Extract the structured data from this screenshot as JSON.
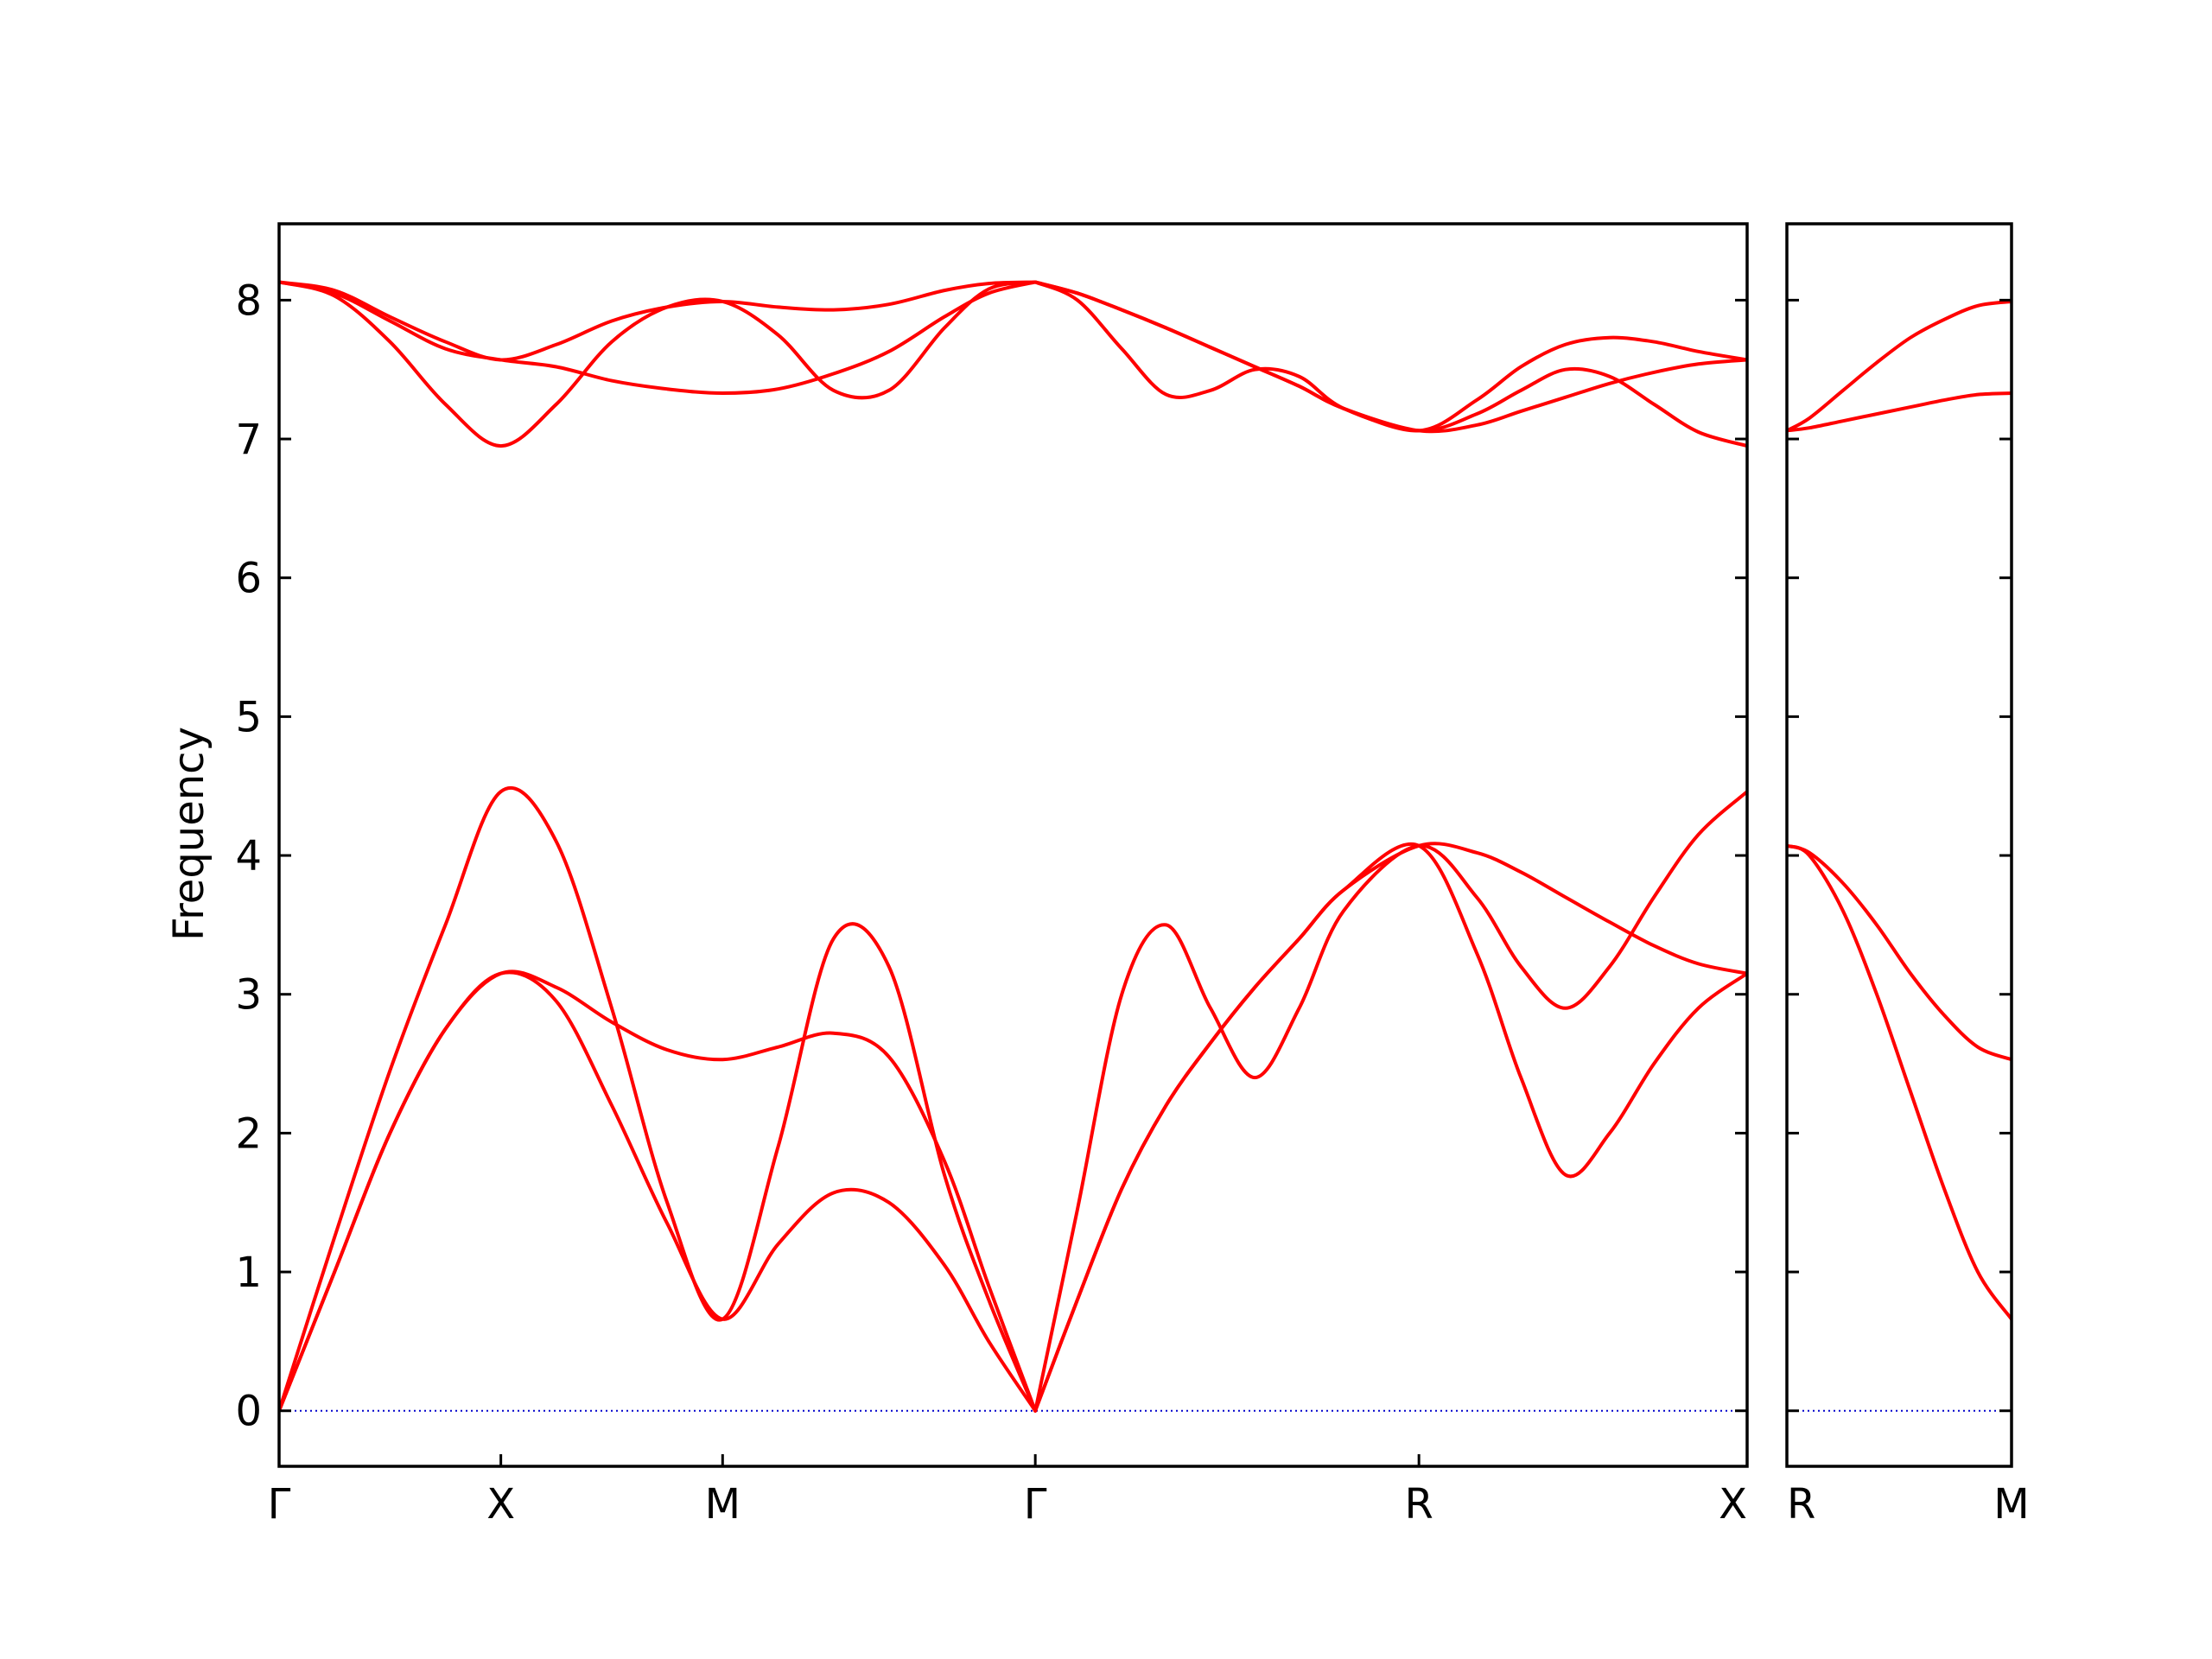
{
  "chart_data": {
    "type": "line",
    "ylabel": "Frequency",
    "ylim": [
      -0.4,
      8.55
    ],
    "yticks": [
      0,
      1,
      2,
      3,
      4,
      5,
      6,
      7,
      8
    ],
    "line_color": "#ff0000",
    "zero_line_color": "#0000cc",
    "grid": false,
    "panels": [
      {
        "xlim": [
          0,
          6.62
        ],
        "xticks": [
          {
            "label": "Γ",
            "x": 0
          },
          {
            "label": "X",
            "x": 1
          },
          {
            "label": "M",
            "x": 2
          },
          {
            "label": "Γ",
            "x": 3.41
          },
          {
            "label": "R",
            "x": 5.14
          },
          {
            "label": "X",
            "x": 6.62
          }
        ],
        "series": [
          {
            "x": [
              0,
              0.25,
              0.5,
              0.75,
              1,
              1.25,
              1.5,
              1.75,
              2,
              2.25,
              2.5,
              2.75,
              3,
              3.2,
              3.41
            ],
            "values": [
              0,
              1.25,
              2.45,
              3.5,
              4.46,
              4.1,
              2.9,
              1.5,
              0.66,
              1.9,
              3.4,
              3.2,
              1.7,
              0.8,
              0
            ]
          },
          {
            "x": [
              0,
              0.25,
              0.5,
              0.75,
              1,
              1.25,
              1.5,
              1.75,
              2,
              2.25,
              2.5,
              2.75,
              3,
              3.2,
              3.41
            ],
            "values": [
              0,
              1,
              2,
              2.75,
              3.15,
              3.05,
              2.8,
              2.6,
              2.53,
              2.62,
              2.72,
              2.55,
              1.8,
              0.9,
              0
            ]
          },
          {
            "x": [
              0,
              0.25,
              0.5,
              0.75,
              1,
              1.25,
              1.5,
              1.75,
              2,
              2.25,
              2.5,
              2.75,
              3,
              3.2,
              3.41
            ],
            "values": [
              0,
              1,
              2,
              2.75,
              3.15,
              2.95,
              2.2,
              1.35,
              0.66,
              1.2,
              1.57,
              1.5,
              1.05,
              0.5,
              0
            ]
          },
          {
            "x": [
              3.41,
              3.6,
              3.8,
              4,
              4.2,
              4.4,
              4.6,
              4.8,
              5.14,
              5.4,
              5.6,
              5.8,
              6,
              6.2,
              6.4,
              6.62
            ],
            "values": [
              0,
              1.45,
              3,
              3.5,
              2.9,
              2.4,
              2.9,
              3.6,
              4.07,
              3.7,
              3.2,
              2.9,
              3.2,
              3.7,
              4.15,
              4.46
            ]
          },
          {
            "x": [
              3.41,
              3.6,
              3.8,
              4,
              4.2,
              4.4,
              4.6,
              4.8,
              5.14,
              5.4,
              5.6,
              5.8,
              6,
              6.2,
              6.4,
              6.62
            ],
            "values": [
              0,
              0.8,
              1.6,
              2.2,
              2.65,
              3.05,
              3.4,
              3.75,
              4.07,
              3.3,
              2.4,
              1.7,
              2,
              2.5,
              2.9,
              3.15
            ]
          },
          {
            "x": [
              3.41,
              3.6,
              3.8,
              4,
              4.2,
              4.4,
              4.6,
              4.8,
              5.14,
              5.4,
              5.6,
              5.8,
              6,
              6.2,
              6.4,
              6.62
            ],
            "values": [
              0,
              0.8,
              1.6,
              2.2,
              2.65,
              3.05,
              3.4,
              3.75,
              4.07,
              4.02,
              3.88,
              3.7,
              3.52,
              3.35,
              3.22,
              3.15
            ]
          },
          {
            "x": [
              0,
              0.25,
              0.5,
              0.75,
              1,
              1.25,
              1.5,
              1.75,
              2,
              2.25,
              2.5,
              2.75,
              3,
              3.2,
              3.41
            ],
            "values": [
              8.13,
              8.07,
              7.88,
              7.7,
              7.57,
              7.68,
              7.85,
              7.95,
              7.99,
              7.95,
              7.93,
              7.97,
              8.07,
              8.12,
              8.13
            ]
          },
          {
            "x": [
              0,
              0.25,
              0.5,
              0.75,
              1,
              1.25,
              1.5,
              1.75,
              2,
              2.25,
              2.5,
              2.75,
              3,
              3.2,
              3.41
            ],
            "values": [
              8.13,
              8.03,
              7.7,
              7.25,
              6.95,
              7.25,
              7.7,
              7.95,
              7.99,
              7.75,
              7.35,
              7.35,
              7.8,
              8.08,
              8.13
            ]
          },
          {
            "x": [
              0,
              0.25,
              0.5,
              0.75,
              1,
              1.25,
              1.5,
              1.75,
              2,
              2.25,
              2.5,
              2.75,
              3,
              3.2,
              3.41
            ],
            "values": [
              8.13,
              8.05,
              7.85,
              7.65,
              7.57,
              7.52,
              7.42,
              7.36,
              7.33,
              7.36,
              7.47,
              7.63,
              7.88,
              8.05,
              8.13
            ]
          },
          {
            "x": [
              3.41,
              3.6,
              3.8,
              4,
              4.2,
              4.4,
              4.6,
              4.8,
              5.14,
              5.4,
              5.6,
              5.8,
              6,
              6.2,
              6.4,
              6.62
            ],
            "values": [
              8.13,
              8,
              7.65,
              7.32,
              7.35,
              7.5,
              7.45,
              7.22,
              7.06,
              7.18,
              7.35,
              7.5,
              7.45,
              7.25,
              7.05,
              6.95
            ]
          },
          {
            "x": [
              3.41,
              3.6,
              3.8,
              4,
              4.2,
              4.4,
              4.6,
              4.8,
              5.14,
              5.4,
              5.6,
              5.8,
              6,
              6.2,
              6.4,
              6.62
            ],
            "values": [
              8.13,
              8.05,
              7.93,
              7.8,
              7.66,
              7.52,
              7.38,
              7.22,
              7.06,
              7.28,
              7.52,
              7.68,
              7.73,
              7.7,
              7.63,
              7.57
            ]
          },
          {
            "x": [
              3.41,
              3.6,
              3.8,
              4,
              4.2,
              4.4,
              4.6,
              4.8,
              5.14,
              5.4,
              5.6,
              5.8,
              6,
              6.2,
              6.4,
              6.62
            ],
            "values": [
              8.13,
              8.05,
              7.93,
              7.8,
              7.66,
              7.52,
              7.38,
              7.22,
              7.06,
              7.1,
              7.2,
              7.3,
              7.4,
              7.48,
              7.54,
              7.57
            ]
          }
        ]
      },
      {
        "xlim": [
          0,
          1
        ],
        "xticks": [
          {
            "label": "R",
            "x": 0
          },
          {
            "label": "M",
            "x": 1
          }
        ],
        "series": [
          {
            "x": [
              0,
              0.1,
              0.25,
              0.4,
              0.55,
              0.7,
              0.85,
              1
            ],
            "values": [
              4.07,
              4,
              3.6,
              3,
              2.3,
              1.6,
              1,
              0.66
            ]
          },
          {
            "x": [
              0,
              0.1,
              0.25,
              0.4,
              0.55,
              0.7,
              0.85,
              1
            ],
            "values": [
              4.07,
              4.02,
              3.8,
              3.5,
              3.15,
              2.85,
              2.62,
              2.53
            ]
          },
          {
            "x": [
              0,
              0.1,
              0.25,
              0.4,
              0.55,
              0.7,
              0.85,
              1
            ],
            "values": [
              7.06,
              7.15,
              7.35,
              7.55,
              7.73,
              7.86,
              7.96,
              7.99
            ]
          },
          {
            "x": [
              0,
              0.1,
              0.25,
              0.4,
              0.55,
              0.7,
              0.85,
              1
            ],
            "values": [
              7.06,
              7.08,
              7.13,
              7.18,
              7.23,
              7.28,
              7.32,
              7.33
            ]
          }
        ]
      }
    ]
  }
}
